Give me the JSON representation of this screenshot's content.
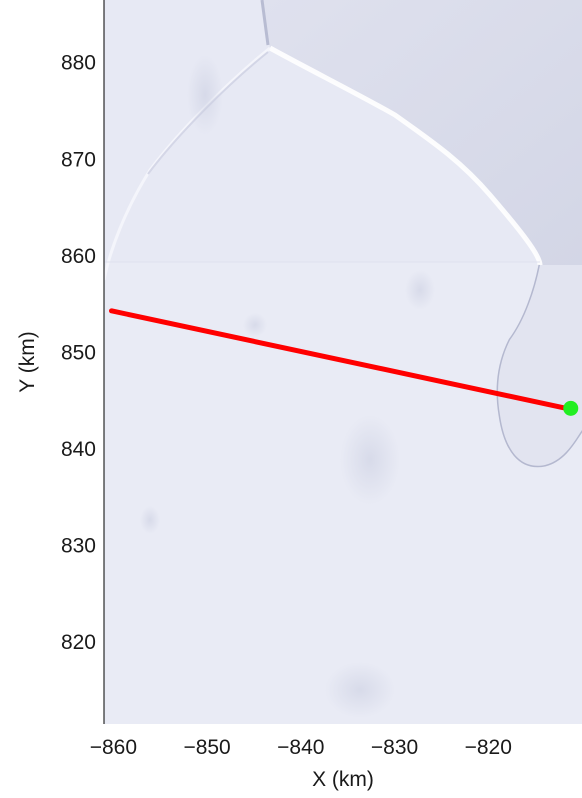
{
  "chart_data": {
    "type": "map",
    "xlabel": "X (km)",
    "ylabel": "Y (km)",
    "xlim": [
      -861,
      -810
    ],
    "ylim": [
      811.5,
      886.5
    ],
    "xticks": [
      -860,
      -850,
      -840,
      -830,
      -820
    ],
    "yticks": [
      820,
      830,
      840,
      850,
      860,
      870,
      880
    ],
    "xtick_labels": [
      "−860",
      "−850",
      "−840",
      "−830",
      "−820"
    ],
    "ytick_labels": [
      "820",
      "830",
      "840",
      "850",
      "860",
      "870",
      "880"
    ],
    "profile_line": {
      "color": "#ff0000",
      "points": [
        [
          -860.2,
          854.3
        ],
        [
          -811.2,
          844.1
        ]
      ]
    },
    "marker": {
      "color": "#22ee22",
      "point": [
        -811.2,
        844.2
      ]
    },
    "background_color": "#e6e8f3",
    "grid": false
  }
}
